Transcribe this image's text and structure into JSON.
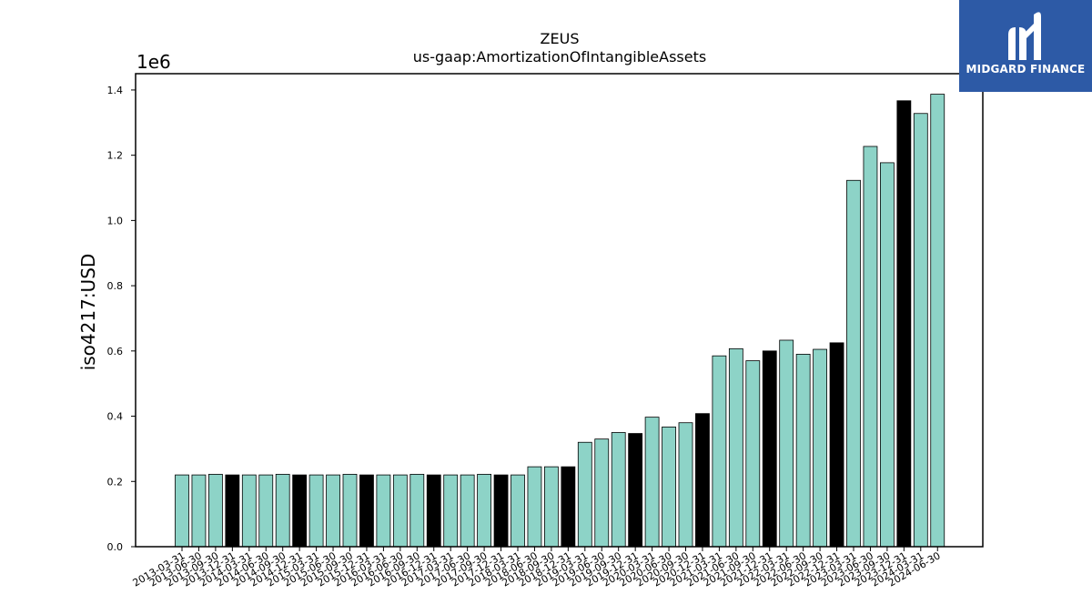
{
  "brand": {
    "name": "MIDGARD FINANCE",
    "bg_color": "#2d5aa6",
    "text_color": "#ffffff"
  },
  "colors": {
    "bar_fill": "#8dd3c7",
    "bar_highlight": "#000000",
    "bar_stroke": "#000000"
  },
  "chart_data": {
    "type": "bar",
    "title": "ZEUS",
    "subtitle": "us-gaap:AmortizationOfIntangibleAssets",
    "xlabel": "",
    "ylabel": "iso4217:USD",
    "y_scale_label": "1e6",
    "ylim": [
      0,
      1.45
    ],
    "yticks": [
      "0.0",
      "0.2",
      "0.4",
      "0.6",
      "0.8",
      "1.0",
      "1.2",
      "1.4"
    ],
    "grid": false,
    "categories": [
      "2013-03-31",
      "2013-06-30",
      "2013-09-30",
      "2013-12-31",
      "2014-03-31",
      "2014-06-30",
      "2014-09-30",
      "2014-12-31",
      "2015-03-31",
      "2015-06-30",
      "2015-09-30",
      "2015-12-31",
      "2016-03-31",
      "2016-06-30",
      "2016-09-30",
      "2016-12-31",
      "2017-03-31",
      "2017-06-30",
      "2017-09-30",
      "2017-12-31",
      "2018-03-31",
      "2018-06-30",
      "2018-09-30",
      "2018-12-31",
      "2019-03-31",
      "2019-06-30",
      "2019-09-30",
      "2019-12-31",
      "2020-03-31",
      "2020-06-30",
      "2020-09-30",
      "2020-12-31",
      "2021-03-31",
      "2021-06-30",
      "2021-09-30",
      "2021-12-31",
      "2022-03-31",
      "2022-06-30",
      "2022-09-30",
      "2022-12-31",
      "2023-03-31",
      "2023-06-30",
      "2023-09-30",
      "2023-12-31",
      "2024-03-31",
      "2024-06-30"
    ],
    "values": [
      0.22,
      0.22,
      0.222,
      0.22,
      0.22,
      0.22,
      0.222,
      0.22,
      0.22,
      0.22,
      0.222,
      0.22,
      0.22,
      0.22,
      0.222,
      0.22,
      0.22,
      0.22,
      0.222,
      0.22,
      0.22,
      0.245,
      0.245,
      0.245,
      0.32,
      0.33,
      0.35,
      0.347,
      0.397,
      0.367,
      0.38,
      0.408,
      0.585,
      0.607,
      0.57,
      0.6,
      0.633,
      0.59,
      0.605,
      0.625,
      1.123,
      1.227,
      1.177,
      1.367,
      1.328,
      1.387
    ],
    "highlighted": [
      false,
      false,
      false,
      true,
      false,
      false,
      false,
      true,
      false,
      false,
      false,
      true,
      false,
      false,
      false,
      true,
      false,
      false,
      false,
      true,
      false,
      false,
      false,
      true,
      false,
      false,
      false,
      true,
      false,
      false,
      false,
      true,
      false,
      false,
      false,
      true,
      false,
      false,
      false,
      true,
      false,
      false,
      false,
      true,
      false,
      false
    ]
  }
}
